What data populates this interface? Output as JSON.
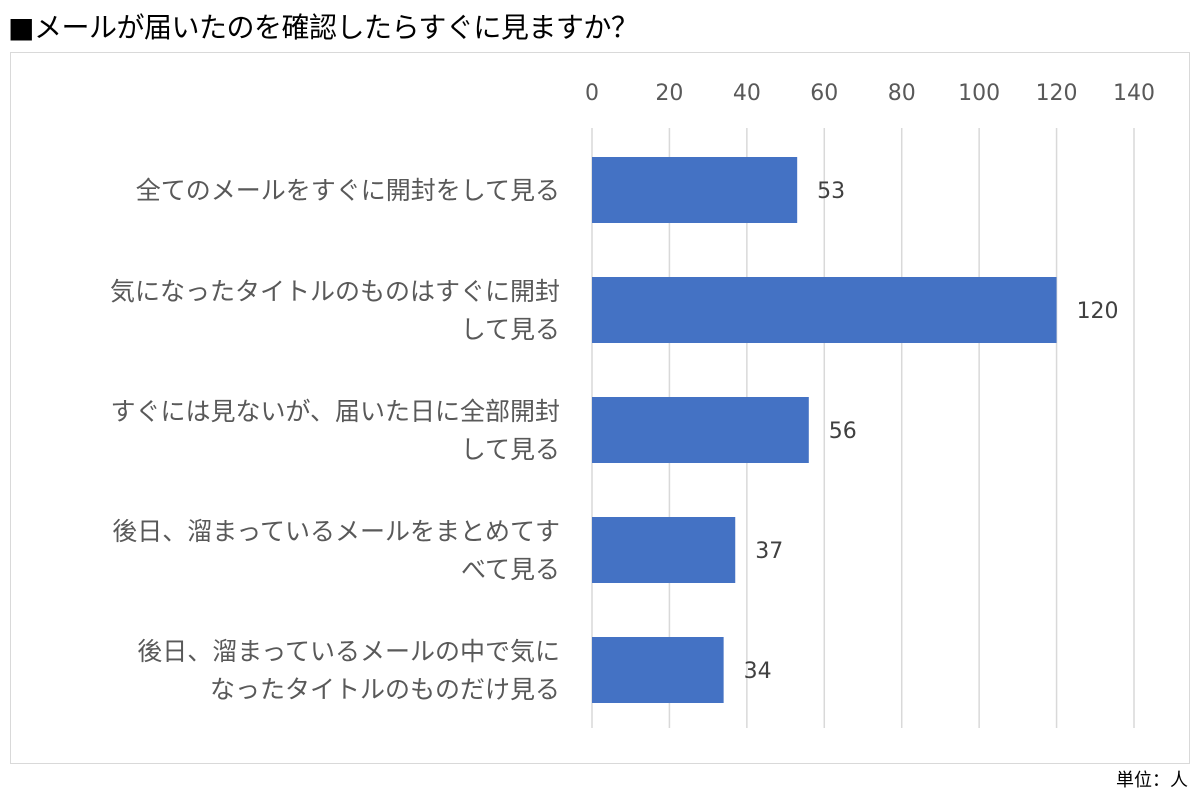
{
  "title": "■メールが届いたのを確認したらすぐに見ますか？",
  "unit_note": "単位：人",
  "colors": {
    "bar": "#4472c4",
    "grid": "#d9d9d9"
  },
  "chart_data": {
    "type": "bar",
    "orientation": "horizontal",
    "categories": [
      [
        "全てのメールをすぐに開封をして見る"
      ],
      [
        "気になったタイトルのものはすぐに開封",
        "して見る"
      ],
      [
        "すぐには見ないが、届いた日に全部開封",
        "して見る"
      ],
      [
        "後日、溜まっているメールをまとめてす",
        "べて見る"
      ],
      [
        "後日、溜まっているメールの中で気に",
        "なったタイトルのものだけ見る"
      ]
    ],
    "values": [
      53,
      120,
      56,
      37,
      34
    ],
    "xlim": [
      0,
      140
    ],
    "x_ticks": [
      0,
      20,
      40,
      60,
      80,
      100,
      120,
      140
    ],
    "x_axis_position": "top",
    "grid": true,
    "data_labels": true,
    "legend": "none"
  }
}
